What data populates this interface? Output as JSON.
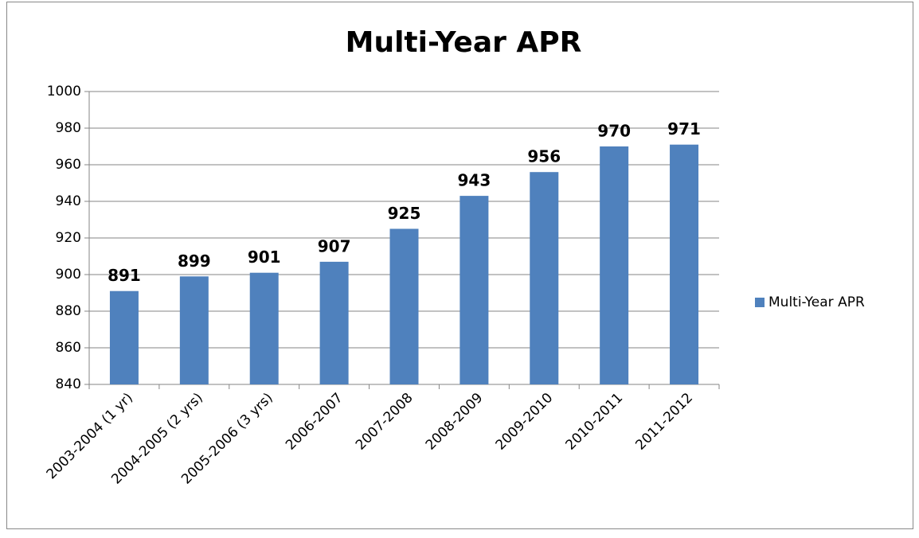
{
  "chart_data": {
    "type": "bar",
    "title": "Multi-Year APR",
    "categories": [
      "2003-2004 (1 yr)",
      "2004-2005 (2 yrs)",
      "2005-2006 (3 yrs)",
      "2006-2007",
      "2007-2008",
      "2008-2009",
      "2009-2010",
      "2010-2011",
      "2011-2012"
    ],
    "series": [
      {
        "name": "Multi-Year APR",
        "color": "#4f81bd",
        "values": [
          891,
          899,
          901,
          907,
          925,
          943,
          956,
          970,
          971
        ]
      }
    ],
    "ylim": [
      840,
      1000
    ],
    "yticks": [
      840,
      860,
      880,
      900,
      920,
      940,
      960,
      980,
      1000
    ],
    "grid": true,
    "legend": "right",
    "data_labels": true
  }
}
